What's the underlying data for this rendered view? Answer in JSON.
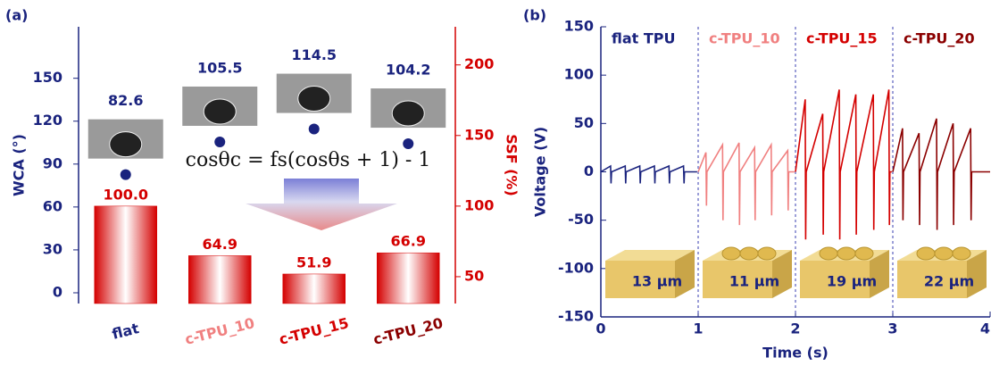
{
  "chart_data": [
    {
      "type": "bar",
      "panel_label": "(a)",
      "categories": [
        "flat",
        "c-TPU_10",
        "c-TPU_15",
        "c-TPU_20"
      ],
      "category_colors": [
        "#1a237e",
        "#f08080",
        "#d40000",
        "#8b0000"
      ],
      "values": [
        100,
        64.9,
        51.9,
        66.9
      ],
      "value_labels": [
        "100.0",
        "64.9",
        "51.9",
        "66.9"
      ],
      "color": "#d40000",
      "axis": "y2",
      "wca_values": [
        82.6,
        105.5,
        114.5,
        104.2
      ],
      "wca_color": "#1a237e",
      "ylabel": "WCA (°)",
      "y2label": "SSF (%)",
      "ylim": [
        -7.5,
        186
      ],
      "yticks": [
        0,
        30,
        60,
        90,
        120,
        150
      ],
      "y2lim": [
        31,
        227
      ],
      "y2ticks": [
        50,
        100,
        150,
        200
      ],
      "equation": "cosθc = fs(cosθs + 1) - 1"
    },
    {
      "type": "line",
      "panel_label": "(b)",
      "xlabel": "Time (s)",
      "ylabel": "Voltage (V)",
      "xlim": [
        0,
        4
      ],
      "xticks": [
        0,
        1,
        2,
        3,
        4
      ],
      "ylim": [
        -150,
        150
      ],
      "yticks": [
        -150,
        -100,
        -50,
        0,
        50,
        100,
        150
      ],
      "dividers": [
        1,
        2,
        3
      ],
      "series": [
        {
          "name": "flat TPU",
          "color": "#1a237e",
          "x": [
            0,
            0.1,
            0.105,
            0.11,
            0.25,
            0.255,
            0.26,
            0.4,
            0.405,
            0.41,
            0.55,
            0.555,
            0.56,
            0.7,
            0.705,
            0.71,
            0.85,
            0.855,
            0.86,
            0.99
          ],
          "values": [
            0,
            6,
            -12,
            0,
            6,
            -12,
            0,
            6,
            -12,
            0,
            6,
            -12,
            0,
            6,
            -12,
            0,
            6,
            -12,
            0,
            0
          ]
        },
        {
          "name": "c-TPU_10",
          "color": "#f08080",
          "x": [
            1,
            1.08,
            1.085,
            1.09,
            1.25,
            1.255,
            1.26,
            1.42,
            1.425,
            1.43,
            1.58,
            1.585,
            1.59,
            1.75,
            1.755,
            1.76,
            1.92,
            1.925,
            1.93,
            1.99
          ],
          "values": [
            0,
            20,
            -35,
            0,
            28,
            -50,
            0,
            30,
            -55,
            0,
            25,
            -50,
            0,
            28,
            -45,
            0,
            22,
            -40,
            0,
            0
          ]
        },
        {
          "name": "c-TPU_15",
          "color": "#d40000",
          "x": [
            2,
            2.1,
            2.105,
            2.11,
            2.28,
            2.285,
            2.29,
            2.45,
            2.455,
            2.46,
            2.62,
            2.625,
            2.63,
            2.8,
            2.805,
            2.81,
            2.96,
            2.965,
            2.97,
            2.99
          ],
          "values": [
            0,
            75,
            -70,
            0,
            60,
            -65,
            0,
            85,
            -70,
            0,
            80,
            -65,
            0,
            80,
            -60,
            0,
            85,
            -55,
            0,
            0
          ]
        },
        {
          "name": "c-TPU_20",
          "color": "#8b0000",
          "x": [
            3,
            3.1,
            3.105,
            3.11,
            3.27,
            3.275,
            3.28,
            3.45,
            3.455,
            3.46,
            3.62,
            3.625,
            3.63,
            3.8,
            3.805,
            3.81,
            4
          ],
          "values": [
            0,
            45,
            -50,
            0,
            40,
            -55,
            0,
            55,
            -60,
            0,
            50,
            -55,
            0,
            45,
            -50,
            0,
            0
          ]
        }
      ],
      "inset_labels": [
        "13 μm",
        "11 μm",
        "19 μm",
        "22 μm"
      ]
    }
  ]
}
